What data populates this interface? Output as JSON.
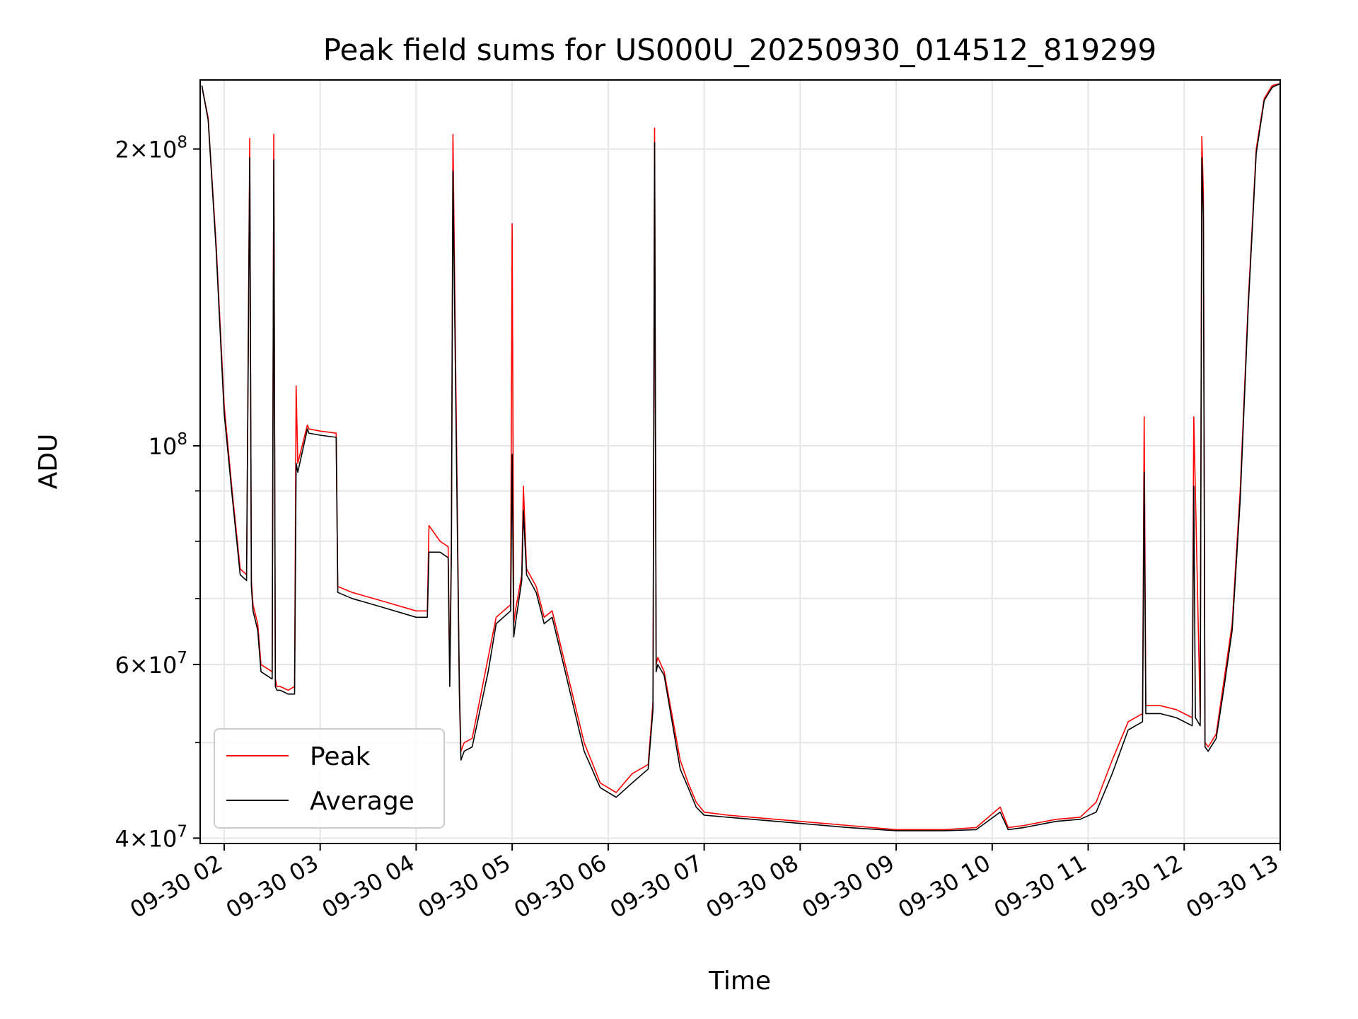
{
  "chart_data": {
    "type": "line",
    "title": "Peak field sums for US000U_20250930_014512_819299",
    "xlabel": "Time",
    "ylabel": "ADU",
    "y_scale": "log",
    "xlim": [
      "2025-09-30 01:45",
      "2025-09-30 13:00"
    ],
    "ylim": [
      39500000,
      235000000
    ],
    "grid": true,
    "legend_position": "lower-left",
    "x_ticks": [
      "09-30 02",
      "09-30 03",
      "09-30 04",
      "09-30 05",
      "09-30 06",
      "09-30 07",
      "09-30 08",
      "09-30 09",
      "09-30 10",
      "09-30 11",
      "09-30 12",
      "09-30 13"
    ],
    "y_ticks": [
      {
        "base": "2",
        "mult": "×",
        "pow": "10",
        "exp": "8"
      },
      {
        "base": "",
        "mult": "",
        "pow": "10",
        "exp": "8"
      },
      {
        "base": "6",
        "mult": "×",
        "pow": "10",
        "exp": "7"
      },
      {
        "base": "4",
        "mult": "×",
        "pow": "10",
        "exp": "7"
      }
    ],
    "series": [
      {
        "name": "Peak",
        "color": "#ff0000",
        "x": [
          "2025-09-30 01:46",
          "2025-09-30 01:50",
          "2025-09-30 01:55",
          "2025-09-30 02:00",
          "2025-09-30 02:05",
          "2025-09-30 02:10",
          "2025-09-30 02:14",
          "2025-09-30 02:16",
          "2025-09-30 02:17",
          "2025-09-30 02:18",
          "2025-09-30 02:21",
          "2025-09-30 02:23",
          "2025-09-30 02:30",
          "2025-09-30 02:31",
          "2025-09-30 02:32",
          "2025-09-30 02:33",
          "2025-09-30 02:35",
          "2025-09-30 02:40",
          "2025-09-30 02:44",
          "2025-09-30 02:45",
          "2025-09-30 02:46",
          "2025-09-30 02:52",
          "2025-09-30 02:53",
          "2025-09-30 03:00",
          "2025-09-30 03:10",
          "2025-09-30 03:11",
          "2025-09-30 03:20",
          "2025-09-30 03:40",
          "2025-09-30 04:00",
          "2025-09-30 04:07",
          "2025-09-30 04:08",
          "2025-09-30 04:15",
          "2025-09-30 04:20",
          "2025-09-30 04:21",
          "2025-09-30 04:22",
          "2025-09-30 04:23",
          "2025-09-30 04:27",
          "2025-09-30 04:28",
          "2025-09-30 04:30",
          "2025-09-30 04:35",
          "2025-09-30 04:45",
          "2025-09-30 04:50",
          "2025-09-30 04:59",
          "2025-09-30 05:00",
          "2025-09-30 05:01",
          "2025-09-30 05:02",
          "2025-09-30 05:06",
          "2025-09-30 05:07",
          "2025-09-30 05:09",
          "2025-09-30 05:15",
          "2025-09-30 05:20",
          "2025-09-30 05:25",
          "2025-09-30 05:30",
          "2025-09-30 05:45",
          "2025-09-30 05:55",
          "2025-09-30 06:05",
          "2025-09-30 06:15",
          "2025-09-30 06:25",
          "2025-09-30 06:28",
          "2025-09-30 06:29",
          "2025-09-30 06:30",
          "2025-09-30 06:31",
          "2025-09-30 06:35",
          "2025-09-30 06:45",
          "2025-09-30 06:50",
          "2025-09-30 06:55",
          "2025-09-30 07:00",
          "2025-09-30 07:15",
          "2025-09-30 07:30",
          "2025-09-30 08:00",
          "2025-09-30 08:30",
          "2025-09-30 09:00",
          "2025-09-30 09:30",
          "2025-09-30 09:50",
          "2025-09-30 10:05",
          "2025-09-30 10:10",
          "2025-09-30 10:20",
          "2025-09-30 10:40",
          "2025-09-30 10:55",
          "2025-09-30 11:05",
          "2025-09-30 11:15",
          "2025-09-30 11:25",
          "2025-09-30 11:34",
          "2025-09-30 11:35",
          "2025-09-30 11:36",
          "2025-09-30 11:45",
          "2025-09-30 11:55",
          "2025-09-30 12:05",
          "2025-09-30 12:06",
          "2025-09-30 12:07",
          "2025-09-30 12:10",
          "2025-09-30 12:11",
          "2025-09-30 12:12",
          "2025-09-30 12:13",
          "2025-09-30 12:15",
          "2025-09-30 12:20",
          "2025-09-30 12:25",
          "2025-09-30 12:30",
          "2025-09-30 12:35",
          "2025-09-30 12:40",
          "2025-09-30 12:45",
          "2025-09-30 12:50",
          "2025-09-30 12:55",
          "2025-09-30 13:00"
        ],
        "y": [
          232000000,
          215000000,
          160000000,
          110000000,
          90000000,
          75000000,
          74000000,
          205000000,
          73000000,
          69000000,
          66000000,
          60000000,
          59000000,
          207000000,
          58000000,
          57000000,
          57000000,
          56500000,
          57000000,
          115000000,
          96000000,
          105000000,
          104000000,
          103500000,
          103000000,
          72000000,
          71000000,
          69500000,
          68000000,
          68000000,
          83000000,
          80000000,
          79000000,
          58000000,
          80000000,
          207000000,
          57000000,
          49000000,
          50000000,
          50500000,
          61000000,
          67000000,
          69000000,
          168000000,
          66000000,
          68000000,
          74000000,
          91000000,
          75000000,
          72000000,
          67000000,
          68000000,
          63000000,
          50000000,
          45500000,
          44500000,
          46500000,
          47500000,
          55000000,
          210000000,
          60000000,
          61000000,
          59000000,
          48000000,
          45500000,
          43500000,
          42500000,
          42200000,
          42000000,
          41600000,
          41200000,
          40800000,
          40800000,
          41000000,
          43000000,
          41000000,
          41200000,
          41800000,
          42000000,
          43500000,
          48000000,
          52500000,
          53500000,
          107000000,
          54500000,
          54500000,
          54000000,
          53000000,
          107000000,
          90000000,
          53000000,
          206000000,
          180000000,
          50000000,
          49500000,
          51000000,
          58000000,
          66000000,
          90000000,
          140000000,
          200000000,
          225000000,
          232000000,
          233000000
        ]
      },
      {
        "name": "Average",
        "color": "#000000",
        "x": [
          "2025-09-30 01:46",
          "2025-09-30 01:50",
          "2025-09-30 01:55",
          "2025-09-30 02:00",
          "2025-09-30 02:05",
          "2025-09-30 02:10",
          "2025-09-30 02:14",
          "2025-09-30 02:16",
          "2025-09-30 02:17",
          "2025-09-30 02:18",
          "2025-09-30 02:21",
          "2025-09-30 02:23",
          "2025-09-30 02:30",
          "2025-09-30 02:31",
          "2025-09-30 02:32",
          "2025-09-30 02:33",
          "2025-09-30 02:35",
          "2025-09-30 02:40",
          "2025-09-30 02:44",
          "2025-09-30 02:45",
          "2025-09-30 02:46",
          "2025-09-30 02:52",
          "2025-09-30 02:53",
          "2025-09-30 03:00",
          "2025-09-30 03:10",
          "2025-09-30 03:11",
          "2025-09-30 03:20",
          "2025-09-30 03:40",
          "2025-09-30 04:00",
          "2025-09-30 04:07",
          "2025-09-30 04:08",
          "2025-09-30 04:15",
          "2025-09-30 04:20",
          "2025-09-30 04:21",
          "2025-09-30 04:22",
          "2025-09-30 04:23",
          "2025-09-30 04:27",
          "2025-09-30 04:28",
          "2025-09-30 04:30",
          "2025-09-30 04:35",
          "2025-09-30 04:45",
          "2025-09-30 04:50",
          "2025-09-30 04:59",
          "2025-09-30 05:00",
          "2025-09-30 05:01",
          "2025-09-30 05:02",
          "2025-09-30 05:06",
          "2025-09-30 05:07",
          "2025-09-30 05:09",
          "2025-09-30 05:15",
          "2025-09-30 05:20",
          "2025-09-30 05:25",
          "2025-09-30 05:30",
          "2025-09-30 05:45",
          "2025-09-30 05:55",
          "2025-09-30 06:05",
          "2025-09-30 06:15",
          "2025-09-30 06:25",
          "2025-09-30 06:28",
          "2025-09-30 06:29",
          "2025-09-30 06:30",
          "2025-09-30 06:31",
          "2025-09-30 06:35",
          "2025-09-30 06:45",
          "2025-09-30 06:50",
          "2025-09-30 06:55",
          "2025-09-30 07:00",
          "2025-09-30 07:15",
          "2025-09-30 07:30",
          "2025-09-30 08:00",
          "2025-09-30 08:30",
          "2025-09-30 09:00",
          "2025-09-30 09:30",
          "2025-09-30 09:50",
          "2025-09-30 10:05",
          "2025-09-30 10:10",
          "2025-09-30 10:20",
          "2025-09-30 10:40",
          "2025-09-30 10:55",
          "2025-09-30 11:05",
          "2025-09-30 11:15",
          "2025-09-30 11:25",
          "2025-09-30 11:34",
          "2025-09-30 11:35",
          "2025-09-30 11:36",
          "2025-09-30 11:45",
          "2025-09-30 11:55",
          "2025-09-30 12:05",
          "2025-09-30 12:06",
          "2025-09-30 12:07",
          "2025-09-30 12:10",
          "2025-09-30 12:11",
          "2025-09-30 12:12",
          "2025-09-30 12:13",
          "2025-09-30 12:15",
          "2025-09-30 12:20",
          "2025-09-30 12:25",
          "2025-09-30 12:30",
          "2025-09-30 12:35",
          "2025-09-30 12:40",
          "2025-09-30 12:45",
          "2025-09-30 12:50",
          "2025-09-30 12:55",
          "2025-09-30 13:00"
        ],
        "y": [
          232000000,
          214000000,
          158000000,
          108000000,
          89000000,
          74000000,
          73000000,
          196000000,
          72000000,
          68000000,
          65000000,
          59000000,
          58000000,
          195000000,
          57000000,
          56500000,
          56500000,
          56000000,
          56000000,
          96000000,
          94000000,
          104000000,
          103000000,
          102500000,
          102000000,
          71000000,
          70000000,
          68500000,
          67000000,
          67000000,
          78000000,
          78000000,
          77000000,
          57000000,
          78000000,
          190000000,
          56000000,
          48000000,
          49000000,
          49500000,
          59000000,
          66000000,
          68000000,
          98000000,
          64000000,
          66000000,
          73000000,
          86000000,
          74000000,
          71000000,
          66000000,
          67000000,
          62000000,
          49000000,
          45000000,
          44000000,
          45500000,
          47000000,
          54000000,
          203000000,
          59000000,
          60000000,
          58500000,
          47000000,
          45000000,
          43000000,
          42200000,
          42000000,
          41800000,
          41400000,
          41000000,
          40700000,
          40700000,
          40800000,
          42500000,
          40800000,
          41000000,
          41600000,
          41800000,
          42500000,
          46500000,
          51500000,
          52500000,
          94000000,
          53500000,
          53500000,
          53000000,
          52000000,
          91000000,
          53000000,
          52000000,
          196000000,
          170000000,
          49500000,
          49000000,
          50500000,
          57000000,
          65000000,
          88000000,
          138000000,
          198000000,
          224000000,
          231000000,
          233000000
        ]
      }
    ]
  }
}
